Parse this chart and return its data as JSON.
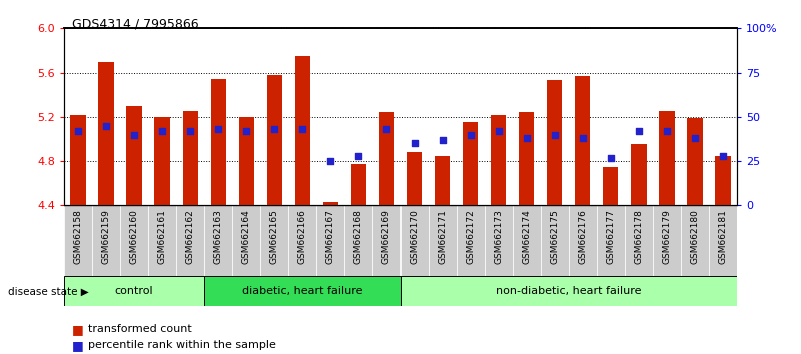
{
  "title": "GDS4314 / 7995866",
  "samples": [
    "GSM662158",
    "GSM662159",
    "GSM662160",
    "GSM662161",
    "GSM662162",
    "GSM662163",
    "GSM662164",
    "GSM662165",
    "GSM662166",
    "GSM662167",
    "GSM662168",
    "GSM662169",
    "GSM662170",
    "GSM662171",
    "GSM662172",
    "GSM662173",
    "GSM662174",
    "GSM662175",
    "GSM662176",
    "GSM662177",
    "GSM662178",
    "GSM662179",
    "GSM662180",
    "GSM662181"
  ],
  "transformed_count": [
    5.22,
    5.7,
    5.3,
    5.2,
    5.25,
    5.54,
    5.2,
    5.58,
    5.75,
    4.43,
    4.77,
    5.24,
    4.88,
    4.85,
    5.15,
    5.22,
    5.24,
    5.53,
    5.57,
    4.75,
    4.95,
    5.25,
    5.19,
    4.85
  ],
  "percentile_rank": [
    42,
    45,
    40,
    42,
    42,
    43,
    42,
    43,
    43,
    25,
    28,
    43,
    35,
    37,
    40,
    42,
    38,
    40,
    38,
    27,
    42,
    42,
    38,
    28
  ],
  "groups": [
    {
      "label": "control",
      "start": 0,
      "end": 4,
      "color": "#aaffaa"
    },
    {
      "label": "diabetic, heart failure",
      "start": 5,
      "end": 11,
      "color": "#33dd55"
    },
    {
      "label": "non-diabetic, heart failure",
      "start": 12,
      "end": 23,
      "color": "#aaffaa"
    }
  ],
  "ylim_left": [
    4.4,
    6.0
  ],
  "ylim_right": [
    0,
    100
  ],
  "yticks_left": [
    4.4,
    4.8,
    5.2,
    5.6,
    6.0
  ],
  "yticks_right": [
    0,
    25,
    50,
    75,
    100
  ],
  "ytick_labels_right": [
    "0",
    "25",
    "50",
    "75",
    "100%"
  ],
  "bar_color": "#cc2200",
  "dot_color": "#2222cc",
  "bar_width": 0.55,
  "background_color": "#ffffff",
  "tick_bg_color": "#cccccc"
}
